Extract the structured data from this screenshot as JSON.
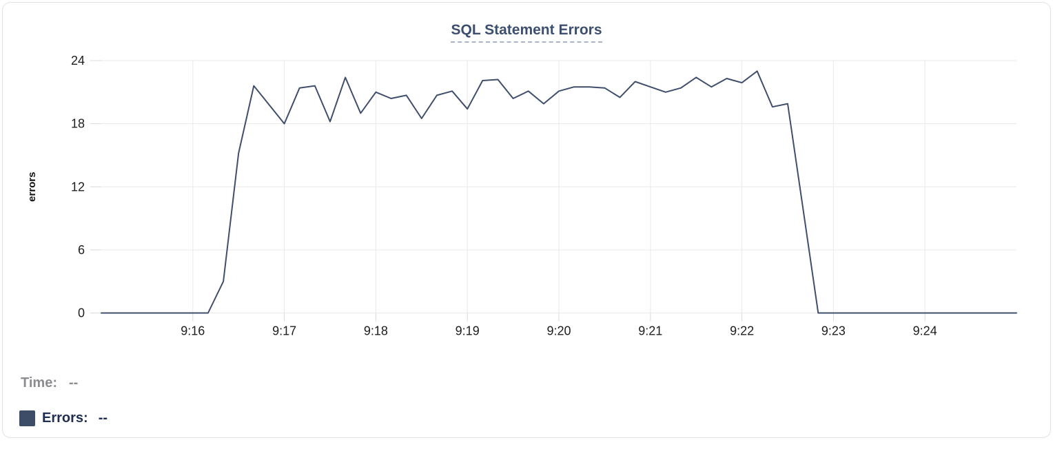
{
  "chart_data": {
    "type": "line",
    "title": "SQL Statement Errors",
    "xlabel": "",
    "ylabel": "errors",
    "ylim": [
      0,
      24
    ],
    "y_ticks": [
      0,
      6,
      12,
      18,
      24
    ],
    "x_tick_labels": [
      "9:16",
      "9:17",
      "9:18",
      "9:19",
      "9:20",
      "9:21",
      "9:22",
      "9:23",
      "9:24"
    ],
    "x_start": "9:15:00",
    "x_end": "9:25:00",
    "sample_interval_seconds": 10,
    "grid": true,
    "legend_position": "bottom-left",
    "series": [
      {
        "name": "Errors",
        "color": "#3f4e6b",
        "values": [
          0,
          0,
          0,
          0,
          0,
          0,
          0,
          0,
          3,
          15.2,
          21.6,
          19.8,
          18,
          21.4,
          21.6,
          18.2,
          22.4,
          19,
          21,
          20.4,
          20.7,
          18.5,
          20.7,
          21.1,
          19.4,
          22.1,
          22.2,
          20.4,
          21.1,
          19.9,
          21.1,
          21.5,
          21.5,
          21.4,
          20.5,
          22,
          21.5,
          21,
          21.4,
          22.4,
          21.5,
          22.3,
          21.9,
          23,
          19.6,
          19.9,
          10,
          0,
          0,
          0,
          0,
          0,
          0,
          0,
          0,
          0,
          0,
          0,
          0,
          0,
          0
        ]
      }
    ]
  },
  "legend": {
    "time_label": "Time:",
    "time_value": "--",
    "errors_label": "Errors:",
    "errors_value": "--"
  },
  "colors": {
    "title": "#3d4f6e",
    "title_underline": "#a8b4c6",
    "axis_text": "#1d1d1f",
    "ylabel_text": "#111111",
    "grid": "#e9e9e9",
    "tick": "#d9d9d9",
    "line": "#3f4e6b",
    "legend_time": "#8c8c90",
    "legend_errors": "#1f2e52",
    "legend_swatch": "#3d4d68",
    "card_border": "#e1e1e4"
  }
}
